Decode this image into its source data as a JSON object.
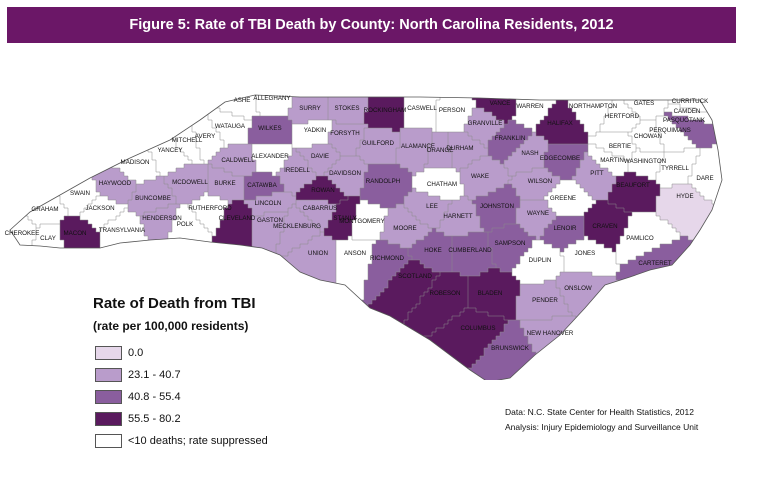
{
  "figure": {
    "title": "Figure 5: Rate of TBI Death by County: North Carolina Residents, 2012"
  },
  "legend": {
    "title": "Rate of Death from TBI",
    "subtitle": "(rate per 100,000 residents)",
    "items": [
      {
        "label": "0.0",
        "color": "#e6d7ea"
      },
      {
        "label": "23.1 - 40.7",
        "color": "#b99ccb"
      },
      {
        "label": "40.8 - 55.4",
        "color": "#8a5e9e"
      },
      {
        "label": "55.5 - 80.2",
        "color": "#5a1a5e"
      },
      {
        "label": "<10 deaths; rate suppressed",
        "color": "#ffffff"
      }
    ]
  },
  "source": {
    "line1": "Data: N.C. State Center for Health Statistics, 2012",
    "line2": "Analysis: Injury Epidemiology and Surveillance Unit"
  },
  "counties": [
    {
      "name": "CHEROKEE",
      "category": 4
    },
    {
      "name": "GRAHAM",
      "category": 4
    },
    {
      "name": "CLAY",
      "category": 4
    },
    {
      "name": "MACON",
      "category": 3
    },
    {
      "name": "SWAIN",
      "category": 4
    },
    {
      "name": "JACKSON",
      "category": 4
    },
    {
      "name": "HAYWOOD",
      "category": 1
    },
    {
      "name": "TRANSYLVANIA",
      "category": 4
    },
    {
      "name": "MADISON",
      "category": 4
    },
    {
      "name": "BUNCOMBE",
      "category": 1
    },
    {
      "name": "HENDERSON",
      "category": 1
    },
    {
      "name": "POLK",
      "category": 4
    },
    {
      "name": "YANCEY",
      "category": 4
    },
    {
      "name": "MITCHELL",
      "category": 4
    },
    {
      "name": "AVERY",
      "category": 4
    },
    {
      "name": "MCDOWELL",
      "category": 1
    },
    {
      "name": "RUTHERFORD",
      "category": 4
    },
    {
      "name": "BURKE",
      "category": 1
    },
    {
      "name": "CALDWELL",
      "category": 1
    },
    {
      "name": "WATAUGA",
      "category": 4
    },
    {
      "name": "ASHE",
      "category": 4
    },
    {
      "name": "ALLEGHANY",
      "category": 4
    },
    {
      "name": "WILKES",
      "category": 2
    },
    {
      "name": "SURRY",
      "category": 1
    },
    {
      "name": "STOKES",
      "category": 1
    },
    {
      "name": "ROCKINGHAM",
      "category": 3
    },
    {
      "name": "CASWELL",
      "category": 4
    },
    {
      "name": "PERSON",
      "category": 4
    },
    {
      "name": "GRANVILLE",
      "category": 1
    },
    {
      "name": "VANCE",
      "category": 3
    },
    {
      "name": "WARREN",
      "category": 4
    },
    {
      "name": "HALIFAX",
      "category": 3
    },
    {
      "name": "NORTHAMPTON",
      "category": 4
    },
    {
      "name": "HERTFORD",
      "category": 4
    },
    {
      "name": "GATES",
      "category": 4
    },
    {
      "name": "CURRITUCK",
      "category": 4
    },
    {
      "name": "CAMDEN",
      "category": 4
    },
    {
      "name": "PASQUOTANK",
      "category": 2
    },
    {
      "name": "PERQUIMANS",
      "category": 4
    },
    {
      "name": "CHOWAN",
      "category": 4
    },
    {
      "name": "BERTIE",
      "category": 4
    },
    {
      "name": "MARTIN",
      "category": 4
    },
    {
      "name": "WASHINGTON",
      "category": 4
    },
    {
      "name": "TYRRELL",
      "category": 4
    },
    {
      "name": "DARE",
      "category": 4
    },
    {
      "name": "HYDE",
      "category": 0
    },
    {
      "name": "BEAUFORT",
      "category": 3
    },
    {
      "name": "PITT",
      "category": 1
    },
    {
      "name": "EDGECOMBE",
      "category": 2
    },
    {
      "name": "NASH",
      "category": 1
    },
    {
      "name": "FRANKLIN",
      "category": 2
    },
    {
      "name": "WAKE",
      "category": 1
    },
    {
      "name": "DURHAM",
      "category": 1
    },
    {
      "name": "ORANGE",
      "category": 1
    },
    {
      "name": "ALAMANCE",
      "category": 1
    },
    {
      "name": "GUILFORD",
      "category": 1
    },
    {
      "name": "FORSYTH",
      "category": 1
    },
    {
      "name": "YADKIN",
      "category": 4
    },
    {
      "name": "ALEXANDER",
      "category": 4
    },
    {
      "name": "IREDELL",
      "category": 1
    },
    {
      "name": "DAVIE",
      "category": 1
    },
    {
      "name": "DAVIDSON",
      "category": 1
    },
    {
      "name": "RANDOLPH",
      "category": 2
    },
    {
      "name": "CHATHAM",
      "category": 4
    },
    {
      "name": "LEE",
      "category": 1
    },
    {
      "name": "HARNETT",
      "category": 1
    },
    {
      "name": "JOHNSTON",
      "category": 2
    },
    {
      "name": "WILSON",
      "category": 1
    },
    {
      "name": "GREENE",
      "category": 4
    },
    {
      "name": "WAYNE",
      "category": 1
    },
    {
      "name": "LENOIR",
      "category": 2
    },
    {
      "name": "CRAVEN",
      "category": 3
    },
    {
      "name": "PAMLICO",
      "category": 4
    },
    {
      "name": "CARTERET",
      "category": 2
    },
    {
      "name": "JONES",
      "category": 4
    },
    {
      "name": "ONSLOW",
      "category": 1
    },
    {
      "name": "DUPLIN",
      "category": 4
    },
    {
      "name": "PENDER",
      "category": 1
    },
    {
      "name": "NEW HANOVER",
      "category": 1
    },
    {
      "name": "BRUNSWICK",
      "category": 2
    },
    {
      "name": "COLUMBUS",
      "category": 3
    },
    {
      "name": "BLADEN",
      "category": 3
    },
    {
      "name": "SAMPSON",
      "category": 2
    },
    {
      "name": "CUMBERLAND",
      "category": 2
    },
    {
      "name": "ROBESON",
      "category": 3
    },
    {
      "name": "SCOTLAND",
      "category": 3
    },
    {
      "name": "HOKE",
      "category": 2
    },
    {
      "name": "MOORE",
      "category": 1
    },
    {
      "name": "RICHMOND",
      "category": 2
    },
    {
      "name": "MONTGOMERY",
      "category": 4
    },
    {
      "name": "STANLY",
      "category": 3
    },
    {
      "name": "ANSON",
      "category": 4
    },
    {
      "name": "UNION",
      "category": 1
    },
    {
      "name": "CABARRUS",
      "category": 1
    },
    {
      "name": "MECKLENBURG",
      "category": 1
    },
    {
      "name": "GASTON",
      "category": 1
    },
    {
      "name": "CLEVELAND",
      "category": 3
    },
    {
      "name": "LINCOLN",
      "category": 1
    },
    {
      "name": "CATAWBA",
      "category": 2
    },
    {
      "name": "ROWAN",
      "category": 3
    }
  ]
}
